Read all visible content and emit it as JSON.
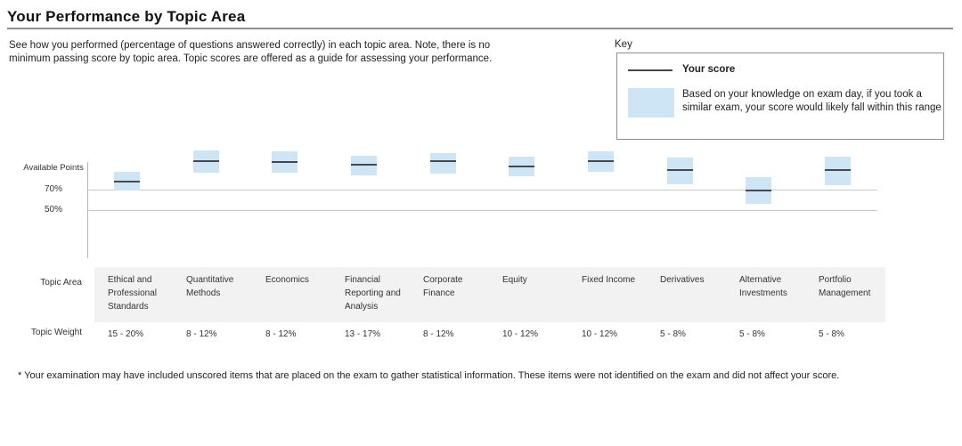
{
  "page_title": "Your Performance by Topic Area",
  "description": "See how you performed (percentage of questions answered correctly) in each topic area. Note, there is no minimum passing score by topic area. Topic scores are offered as a guide for assessing your performance.",
  "key": {
    "label": "Key",
    "score_label": "Your score",
    "band_label": "Based on your knowledge on exam day, if you took a similar exam, your score would likely fall within this range"
  },
  "colors": {
    "band": "#cde5f4",
    "score_line": "#45494d",
    "gridline": "#c9c9c9",
    "axis": "#b3b3b3",
    "topic_row_bg": "#f2f2f2"
  },
  "chart_data": {
    "type": "range_band",
    "title": "Your Performance by Topic Area",
    "y_axis": {
      "top_label": "Available Points",
      "gridlines": [
        {
          "label": "70%",
          "value": 70
        },
        {
          "label": "50%",
          "value": 50
        }
      ],
      "unit": "percent of available points"
    },
    "row_labels": {
      "topic": "Topic Area",
      "weight": "Topic Weight"
    },
    "legend_position": "top-right",
    "topics": [
      {
        "name": "Ethical and Professional Standards",
        "weight": "15 - 20%",
        "score": 78,
        "band_low": 69,
        "band_high": 87
      },
      {
        "name": "Quantitative Methods",
        "weight": "8 - 12%",
        "score": 98,
        "band_low": 86,
        "band_high": 108
      },
      {
        "name": "Economics",
        "weight": "8 - 12%",
        "score": 97,
        "band_low": 86,
        "band_high": 107
      },
      {
        "name": "Financial Reporting and Analysis",
        "weight": "13 - 17%",
        "score": 94,
        "band_low": 84,
        "band_high": 103
      },
      {
        "name": "Corporate Finance",
        "weight": "8 - 12%",
        "score": 98,
        "band_low": 86,
        "band_high": 106
      },
      {
        "name": "Equity",
        "weight": "10 - 12%",
        "score": 93,
        "band_low": 83,
        "band_high": 102
      },
      {
        "name": "Fixed Income",
        "weight": "10 - 12%",
        "score": 98,
        "band_low": 87,
        "band_high": 107
      },
      {
        "name": "Derivatives",
        "weight": "5 - 8%",
        "score": 89,
        "band_low": 75,
        "band_high": 101
      },
      {
        "name": "Alternative Investments",
        "weight": "5 - 8%",
        "score": 69,
        "band_low": 56,
        "band_high": 82
      },
      {
        "name": "Portfolio Management",
        "weight": "5 - 8%",
        "score": 89,
        "band_low": 74,
        "band_high": 102
      }
    ]
  },
  "footnote": "* Your examination may have included unscored items that are placed on the exam to gather statistical information. These items were not identified on the exam and did not affect your score."
}
